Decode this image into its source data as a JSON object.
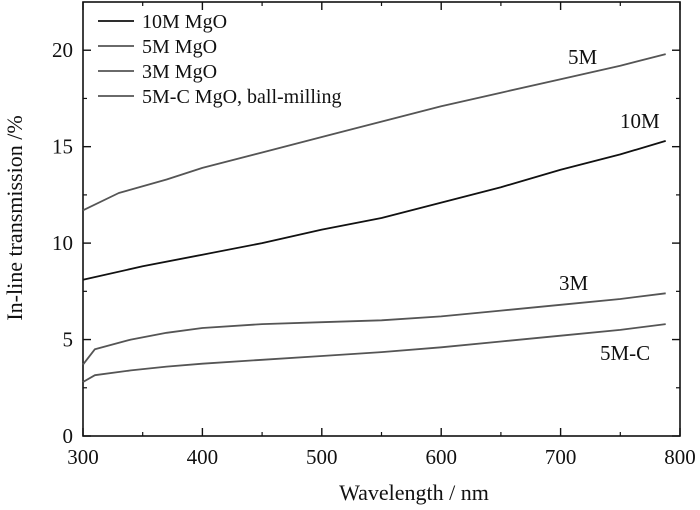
{
  "chart_data": {
    "type": "line",
    "title": "",
    "xlabel": "Wavelength / nm",
    "ylabel": "In-line transmission /%",
    "xlim": [
      300,
      800
    ],
    "ylim": [
      0,
      22.5
    ],
    "xticks": [
      300,
      400,
      500,
      600,
      700,
      800
    ],
    "yticks": [
      0,
      5,
      10,
      15,
      20
    ],
    "xtick_labels": [
      "300",
      "400",
      "500",
      "600",
      "700",
      "800"
    ],
    "ytick_labels": [
      "0",
      "5",
      "10",
      "15",
      "20"
    ],
    "grid": false,
    "legend_position": "top-left",
    "series": [
      {
        "name": "10M MgO",
        "label": "10M",
        "color": "#111111",
        "x": [
          300,
          350,
          400,
          450,
          500,
          550,
          600,
          650,
          700,
          750,
          788
        ],
        "y": [
          8.1,
          8.8,
          9.4,
          10.0,
          10.7,
          11.3,
          12.1,
          12.9,
          13.8,
          14.6,
          15.3
        ]
      },
      {
        "name": "5M MgO",
        "label": "5M",
        "color": "#555555",
        "x": [
          300,
          330,
          370,
          400,
          450,
          500,
          550,
          600,
          650,
          700,
          750,
          788
        ],
        "y": [
          11.7,
          12.6,
          13.3,
          13.9,
          14.7,
          15.5,
          16.3,
          17.1,
          17.8,
          18.5,
          19.2,
          19.8
        ]
      },
      {
        "name": "3M MgO",
        "label": "3M",
        "color": "#555555",
        "x": [
          300,
          310,
          340,
          370,
          400,
          450,
          500,
          550,
          600,
          650,
          700,
          750,
          788
        ],
        "y": [
          3.7,
          4.5,
          5.0,
          5.35,
          5.6,
          5.8,
          5.9,
          6.0,
          6.2,
          6.5,
          6.8,
          7.1,
          7.4
        ]
      },
      {
        "name": "5M-C  MgO, ball-milling",
        "label": "5M-C",
        "color": "#555555",
        "x": [
          300,
          310,
          340,
          370,
          400,
          450,
          500,
          550,
          600,
          650,
          700,
          750,
          788
        ],
        "y": [
          2.8,
          3.15,
          3.4,
          3.6,
          3.75,
          3.95,
          4.15,
          4.35,
          4.6,
          4.9,
          5.2,
          5.5,
          5.8
        ]
      }
    ]
  }
}
